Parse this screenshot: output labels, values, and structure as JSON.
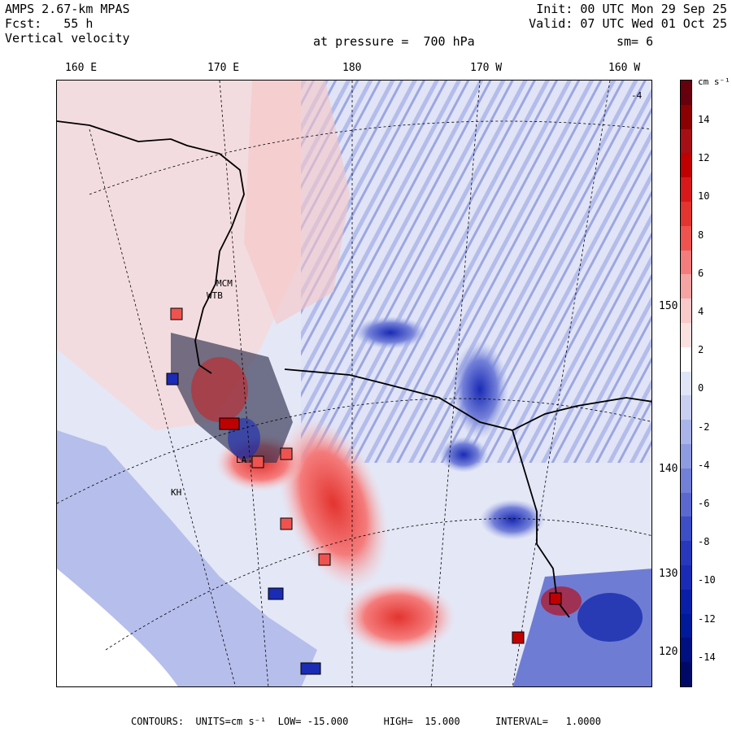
{
  "header": {
    "model": "AMPS 2.67-km MPAS",
    "forecast": "Fcst:   55 h",
    "field": "Vertical velocity",
    "init": "Init: 00 UTC Mon 29 Sep 25",
    "valid": "Valid: 07 UTC Wed 01 Oct 25",
    "pressure": "at pressure =  700 hPa",
    "smoothing": "sm= 6"
  },
  "map": {
    "longitude_labels": [
      "160 E",
      "170 E",
      "180",
      "170 W",
      "160 W"
    ],
    "latitude_labels": [
      "150 W",
      "140 W",
      "130 W",
      "120 W"
    ],
    "station_labels": [
      "MCM",
      "WTB",
      "LA",
      "KH"
    ],
    "corner_marker": "-4"
  },
  "colorbar": {
    "unit": "cm s⁻¹",
    "tick_labels": [
      "14",
      "12",
      "10",
      "8",
      "6",
      "4",
      "2",
      "0",
      "-2",
      "-4",
      "-6",
      "-8",
      "-10",
      "-12",
      "-14"
    ],
    "colors": [
      "#67000d",
      "#8b0000",
      "#a50f15",
      "#c00000",
      "#d7191c",
      "#e3342f",
      "#ef5350",
      "#f47c7c",
      "#f6a3a3",
      "#f9c8c8",
      "#fbe0e0",
      "#ffffff",
      "#e0e4f6",
      "#c9cff0",
      "#aab4e8",
      "#8f9be0",
      "#7380d8",
      "#5a68cf",
      "#3d4ec6",
      "#2838bc",
      "#1a2bb5",
      "#0a1fa8",
      "#001a9a",
      "#001080",
      "#000a66"
    ]
  },
  "footer": {
    "text": "CONTOURS:  UNITS=cm s⁻¹  LOW= -15.000      HIGH=  15.000      INTERVAL=   1.0000"
  }
}
